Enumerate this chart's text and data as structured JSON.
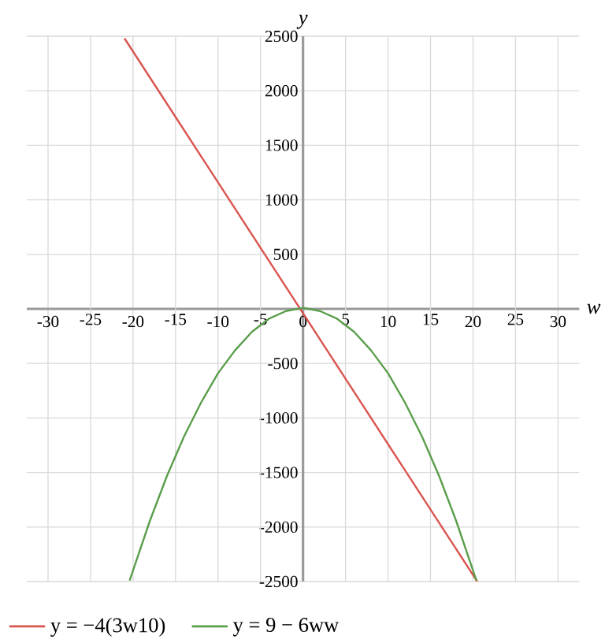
{
  "chart_data": {
    "type": "line",
    "xlabel": "w",
    "ylabel": "y",
    "xlim": [
      -32.5,
      32.5
    ],
    "ylim": [
      -2500,
      2500
    ],
    "xticks": [
      -30,
      -25,
      -20,
      -15,
      -10,
      -5,
      0,
      5,
      10,
      15,
      20,
      25,
      30
    ],
    "yticks": [
      -2500,
      -2000,
      -1500,
      -1000,
      -500,
      500,
      1000,
      1500,
      2000,
      2500
    ],
    "grid": true,
    "legend": "bottom",
    "marker": "none",
    "line_style": "solid",
    "series": [
      {
        "name": "y = −4(3w10)",
        "color": "#d9544f",
        "x": [
          -21,
          20.5
        ],
        "values": [
          2480,
          -2500
        ]
      },
      {
        "name": "y = 9 − 6ww",
        "color": "#5a9e4b",
        "x": [
          -20.4,
          -18,
          -16,
          -14,
          -12,
          -10,
          -8,
          -6,
          -4,
          -2,
          0,
          2,
          4,
          6,
          8,
          10,
          12,
          14,
          16,
          18,
          20.4
        ],
        "values": [
          -2490,
          -1940,
          -1530,
          -1170,
          -860,
          -590,
          -380,
          -210,
          -90,
          -20,
          10,
          -20,
          -90,
          -210,
          -380,
          -590,
          -860,
          -1170,
          -1530,
          -1940,
          -2490
        ]
      }
    ]
  }
}
